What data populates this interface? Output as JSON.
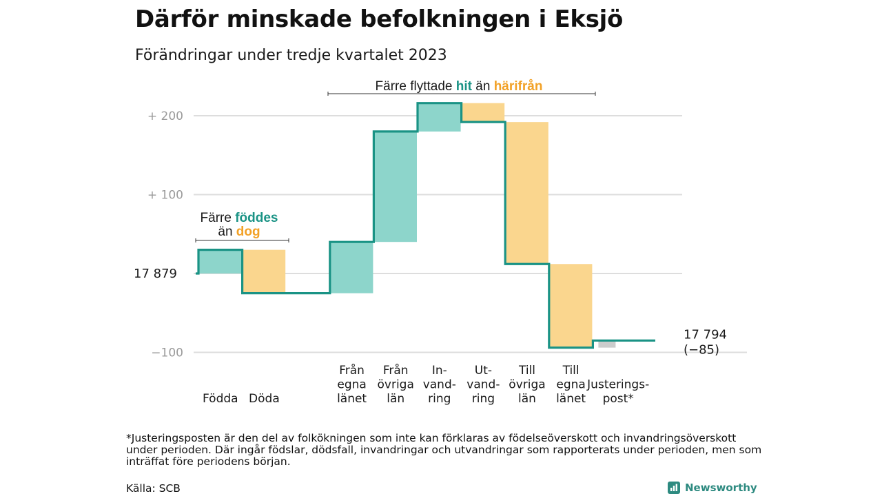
{
  "title": "Därför minskade befolkningen i Eksjö",
  "subtitle": "Förändringar under tredje kvartalet 2023",
  "footnote": "*Justeringsposten är den del av folkökningen som inte kan förklaras av födelseöverskott och invandringsöverskott under perioden. Där ingår födslar, dödsfall, invandringar och utvandringar som rapporterats under perioden, men som inträffat före periodens början.",
  "source": "Källa: SCB",
  "brand": "Newsworthy",
  "colors": {
    "line": "#1a9385",
    "in_fill": "#8dd5cb",
    "out_fill": "#fad68e",
    "adj_fill": "#cccccc",
    "teal_text": "#1a9385",
    "orange_text": "#f2a126",
    "grid": "#dddddd",
    "axis_text": "#9a9a9a"
  },
  "chart_data": {
    "type": "waterfall",
    "start_value": 17879,
    "start_label": "17  879",
    "end_label_value": "17 794",
    "end_label_change": "(−85)",
    "y_ticks": [
      {
        "value": 200,
        "label": "+  200"
      },
      {
        "value": 100,
        "label": "+  100"
      },
      {
        "value": -100,
        "label": "−100"
      }
    ],
    "ylim": [
      -100,
      200
    ],
    "grid": true,
    "steps": [
      {
        "label": [
          "Födda"
        ],
        "change": 30,
        "kind": "in"
      },
      {
        "label": [
          "Döda"
        ],
        "change": -55,
        "kind": "out"
      },
      {
        "label": [],
        "change": 0,
        "kind": "gap"
      },
      {
        "label": [
          "Från",
          "egna",
          "länet"
        ],
        "change": 65,
        "kind": "in"
      },
      {
        "label": [
          "Från",
          "övriga",
          "län"
        ],
        "change": 140,
        "kind": "in"
      },
      {
        "label": [
          "In-",
          "vand-",
          "ring"
        ],
        "change": 36,
        "kind": "in"
      },
      {
        "label": [
          "Ut-",
          "vand-",
          "ring"
        ],
        "change": -24,
        "kind": "out"
      },
      {
        "label": [
          "Till",
          "övriga",
          "län"
        ],
        "change": -180,
        "kind": "out"
      },
      {
        "label": [
          "Till",
          "egna",
          "länet"
        ],
        "change": -106,
        "kind": "out"
      },
      {
        "label": [
          "Justerings-",
          "post*"
        ],
        "change": 9,
        "kind": "adj"
      }
    ],
    "annotations": [
      {
        "name": "birth-death",
        "parts": [
          [
            "Färre ",
            "plain"
          ],
          [
            "föddes",
            "teal"
          ]
        ],
        "parts2": [
          [
            "än ",
            "plain"
          ],
          [
            "dog",
            "orange"
          ]
        ]
      },
      {
        "name": "migration",
        "parts": [
          [
            "Färre flyttade ",
            "plain"
          ],
          [
            "hit",
            "teal"
          ],
          [
            " än ",
            "plain"
          ],
          [
            "härifrån",
            "orange"
          ]
        ]
      }
    ]
  }
}
